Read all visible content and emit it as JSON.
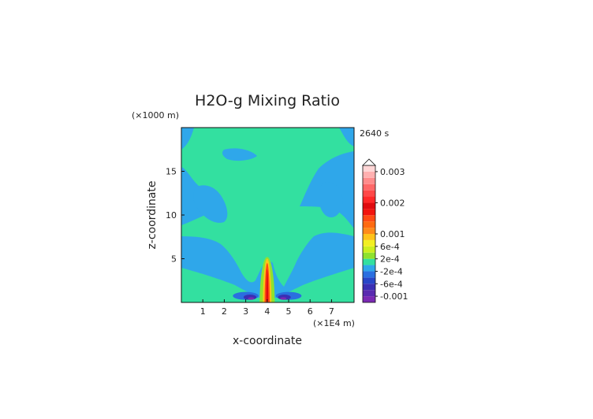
{
  "chart_data": {
    "type": "heatmap",
    "title": "H2O-g Mixing Ratio",
    "time_label": "2640 s",
    "xlabel": "x-coordinate",
    "ylabel": "z-coordinate",
    "x_unit": "(×1E4 m)",
    "y_unit": "(×1000 m)",
    "xlim": [
      0,
      8.05
    ],
    "ylim": [
      0,
      20
    ],
    "x_ticks": [
      1,
      2,
      3,
      4,
      5,
      6,
      7
    ],
    "y_ticks": [
      5,
      10,
      15
    ],
    "colorbar": {
      "extend": "max",
      "labels": [
        {
          "text": "0.003",
          "level": 0.003
        },
        {
          "text": "0.002",
          "level": 0.002
        },
        {
          "text": "0.001",
          "level": 0.001
        },
        {
          "text": "6e-4",
          "level": 0.0006
        },
        {
          "text": "2e-4",
          "level": 0.0002
        },
        {
          "text": "-2e-4",
          "level": -0.0002
        },
        {
          "text": "-6e-4",
          "level": -0.0006
        },
        {
          "text": "-0.001",
          "level": -0.001
        }
      ],
      "bands": [
        {
          "lo": -0.0012,
          "color": "#7b2ab4"
        },
        {
          "lo": -0.001,
          "color": "#5a2bb0"
        },
        {
          "lo": -0.0008,
          "color": "#3a2fb4"
        },
        {
          "lo": -0.0006,
          "color": "#2746c8"
        },
        {
          "lo": -0.0004,
          "color": "#2a6fe0"
        },
        {
          "lo": -0.0002,
          "color": "#2fa7ea"
        },
        {
          "lo": 0.0,
          "color": "#33e0a0"
        },
        {
          "lo": 0.0002,
          "color": "#8ee22e"
        },
        {
          "lo": 0.0004,
          "color": "#ccef1e"
        },
        {
          "lo": 0.0006,
          "color": "#f2ef22"
        },
        {
          "lo": 0.0008,
          "color": "#ffc21a"
        },
        {
          "lo": 0.001,
          "color": "#ff8a1a"
        },
        {
          "lo": 0.0012,
          "color": "#ff6a10"
        },
        {
          "lo": 0.0014,
          "color": "#ff4a14"
        },
        {
          "lo": 0.0016,
          "color": "#f2140e"
        },
        {
          "lo": 0.0018,
          "color": "#e00c10"
        },
        {
          "lo": 0.002,
          "color": "#ff2828"
        },
        {
          "lo": 0.0022,
          "color": "#ff4848"
        },
        {
          "lo": 0.0024,
          "color": "#ff6868"
        },
        {
          "lo": 0.0026,
          "color": "#ff8c8c"
        },
        {
          "lo": 0.0028,
          "color": "#ffb0b0"
        },
        {
          "lo": 0.003,
          "color": "#ffd6d6"
        }
      ]
    },
    "field_regions": [
      {
        "level": 5e-05,
        "color": "#2fa7ea",
        "shape": "background"
      },
      {
        "level": 0.00015,
        "color": "#33e0a0",
        "shape": "upper-canopy"
      },
      {
        "level": -0.0005,
        "color": "#2a6fe0",
        "shape": "left-lower-lobe",
        "x": [
          2.4,
          3.6
        ],
        "y": [
          0.3,
          1.2
        ]
      },
      {
        "level": -0.0007,
        "color": "#3a2fb4",
        "shape": "left-core",
        "x": [
          2.9,
          3.5
        ],
        "y": [
          0.3,
          0.9
        ]
      },
      {
        "level": -0.0011,
        "color": "#7b2ab4",
        "shape": "left-core-min",
        "x": [
          3.1,
          3.4
        ],
        "y": [
          0.3,
          0.6
        ]
      },
      {
        "level": -0.0005,
        "color": "#2a6fe0",
        "shape": "right-lower-lobe",
        "x": [
          4.4,
          5.6
        ],
        "y": [
          0.3,
          1.2
        ]
      },
      {
        "level": -0.0007,
        "color": "#3a2fb4",
        "shape": "right-core",
        "x": [
          4.5,
          5.1
        ],
        "y": [
          0.3,
          0.9
        ]
      },
      {
        "level": -0.0011,
        "color": "#7b2ab4",
        "shape": "right-core-min",
        "x": [
          4.6,
          4.9
        ],
        "y": [
          0.3,
          0.6
        ]
      },
      {
        "level": 0.0003,
        "color": "#8ee22e",
        "shape": "plume-outer",
        "x": [
          3.65,
          4.35
        ],
        "y": [
          0,
          5.2
        ]
      },
      {
        "level": 0.0009,
        "color": "#ffc21a",
        "shape": "plume-mid",
        "x": [
          3.8,
          4.2
        ],
        "y": [
          0,
          5.0
        ]
      },
      {
        "level": 0.0015,
        "color": "#ff4a14",
        "shape": "plume-inner",
        "x": [
          3.88,
          4.12
        ],
        "y": [
          0,
          4.5
        ]
      },
      {
        "level": 0.0019,
        "color": "#e00c10",
        "shape": "plume-core",
        "x": [
          3.95,
          4.05
        ],
        "y": [
          0.2,
          3.8
        ]
      }
    ]
  }
}
